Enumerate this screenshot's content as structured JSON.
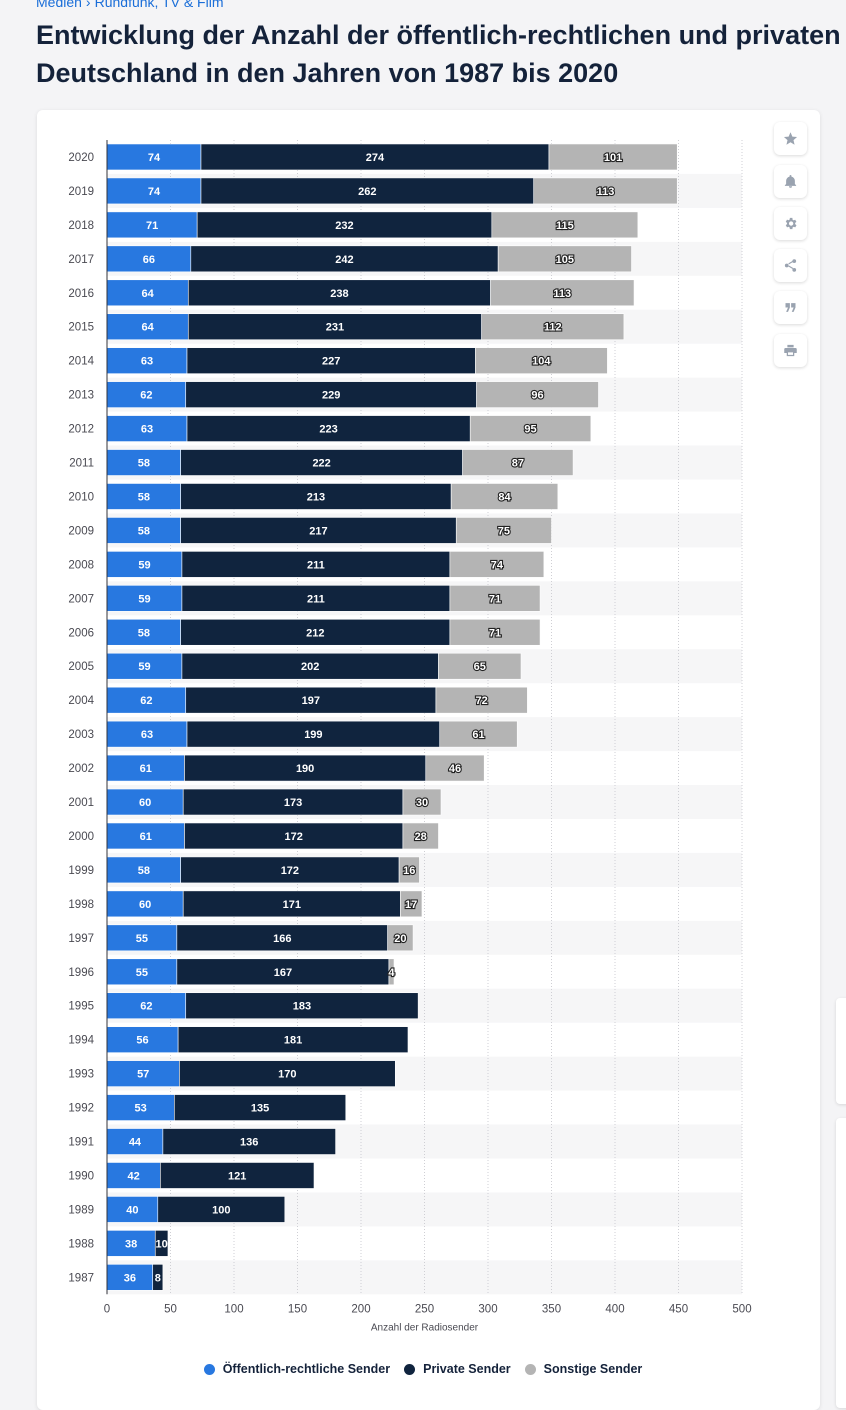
{
  "breadcrumb": {
    "items": [
      "Medien",
      "Rundfunk, TV & Film"
    ],
    "separator": "›"
  },
  "title": {
    "line1": "Entwicklung der Anzahl der öffentlich-rechtlichen und privaten",
    "line2": "Deutschland in den Jahren von 1987 bis 2020"
  },
  "toolbar": [
    {
      "name": "favorite-icon"
    },
    {
      "name": "notification-bell-icon"
    },
    {
      "name": "settings-gear-icon"
    },
    {
      "name": "share-icon"
    },
    {
      "name": "quote-icon"
    },
    {
      "name": "print-icon"
    }
  ],
  "colors": {
    "series": [
      "#2878e0",
      "#10243e",
      "#b4b4b4"
    ],
    "band": "#f6f6f7",
    "grid": "#cfcfd4",
    "axis": "#33333a",
    "tickText": "#4a4a52",
    "labelText": "#ffffff"
  },
  "chart_data": {
    "type": "bar",
    "orientation": "horizontal",
    "stacked": true,
    "categories": [
      "2020",
      "2019",
      "2018",
      "2017",
      "2016",
      "2015",
      "2014",
      "2013",
      "2012",
      "2011",
      "2010",
      "2009",
      "2008",
      "2007",
      "2006",
      "2005",
      "2004",
      "2003",
      "2002",
      "2001",
      "2000",
      "1999",
      "1998",
      "1997",
      "1996",
      "1995",
      "1994",
      "1993",
      "1992",
      "1991",
      "1990",
      "1989",
      "1988",
      "1987"
    ],
    "series": [
      {
        "name": "Öffentlich-rechtliche Sender",
        "values": [
          74,
          74,
          71,
          66,
          64,
          64,
          63,
          62,
          63,
          58,
          58,
          58,
          59,
          59,
          58,
          59,
          62,
          63,
          61,
          60,
          61,
          58,
          60,
          55,
          55,
          62,
          56,
          57,
          53,
          44,
          42,
          40,
          38,
          36
        ]
      },
      {
        "name": "Private Sender",
        "values": [
          274,
          262,
          232,
          242,
          238,
          231,
          227,
          229,
          223,
          222,
          213,
          217,
          211,
          211,
          212,
          202,
          197,
          199,
          190,
          173,
          172,
          172,
          171,
          166,
          167,
          183,
          181,
          170,
          135,
          136,
          121,
          100,
          10,
          8
        ]
      },
      {
        "name": "Sonstige Sender",
        "values": [
          101,
          113,
          115,
          105,
          113,
          112,
          104,
          96,
          95,
          87,
          84,
          75,
          74,
          71,
          71,
          65,
          72,
          61,
          46,
          30,
          28,
          16,
          17,
          20,
          4,
          0,
          0,
          0,
          0,
          0,
          0,
          0,
          0,
          0
        ]
      }
    ],
    "xlabel": "Anzahl der Radiosender",
    "ylabel": "",
    "xlim": [
      0,
      500
    ],
    "xticks": [
      0,
      50,
      100,
      150,
      200,
      250,
      300,
      350,
      400,
      450,
      500
    ],
    "grid": true,
    "legend": "bottom-center"
  }
}
